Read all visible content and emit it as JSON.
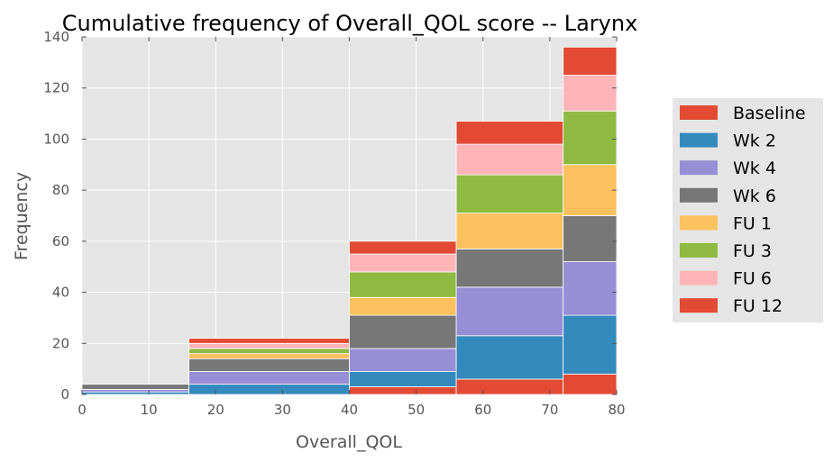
{
  "chart_data": {
    "type": "bar",
    "title": "Cumulative frequency of Overall_QOL score -- Larynx",
    "xlabel": "Overall_QOL",
    "ylabel": "Frequency",
    "xlim": [
      0,
      80
    ],
    "ylim": [
      0,
      140
    ],
    "xticks": [
      "0",
      "10",
      "20",
      "30",
      "40",
      "50",
      "60",
      "70",
      "80"
    ],
    "yticks": [
      "0",
      "20",
      "40",
      "60",
      "80",
      "100",
      "120",
      "140"
    ],
    "grid": true,
    "stacked": true,
    "legend_position": "right",
    "bins": [
      [
        0,
        16
      ],
      [
        16,
        40
      ],
      [
        40,
        56
      ],
      [
        56,
        72
      ],
      [
        72,
        80
      ]
    ],
    "series": [
      {
        "name": "Baseline",
        "color": "#E24A33",
        "values": [
          0,
          0,
          3,
          6,
          8
        ]
      },
      {
        "name": "Wk 2",
        "color": "#348ABD",
        "values": [
          1,
          4,
          6,
          17,
          23
        ]
      },
      {
        "name": "Wk 4",
        "color": "#988ED5",
        "values": [
          1,
          5,
          9,
          19,
          21
        ]
      },
      {
        "name": "Wk 6",
        "color": "#777777",
        "values": [
          2,
          5,
          13,
          15,
          18
        ]
      },
      {
        "name": "FU 1",
        "color": "#FBC15E",
        "values": [
          0,
          2,
          7,
          14,
          20
        ]
      },
      {
        "name": "FU 3",
        "color": "#8EBA42",
        "values": [
          0,
          2,
          10,
          15,
          21
        ]
      },
      {
        "name": "FU 6",
        "color": "#FFB5B8",
        "values": [
          0,
          2,
          7,
          12,
          14
        ]
      },
      {
        "name": "FU 12",
        "color": "#E24A33",
        "values": [
          0,
          2,
          5,
          9,
          11
        ]
      }
    ]
  }
}
